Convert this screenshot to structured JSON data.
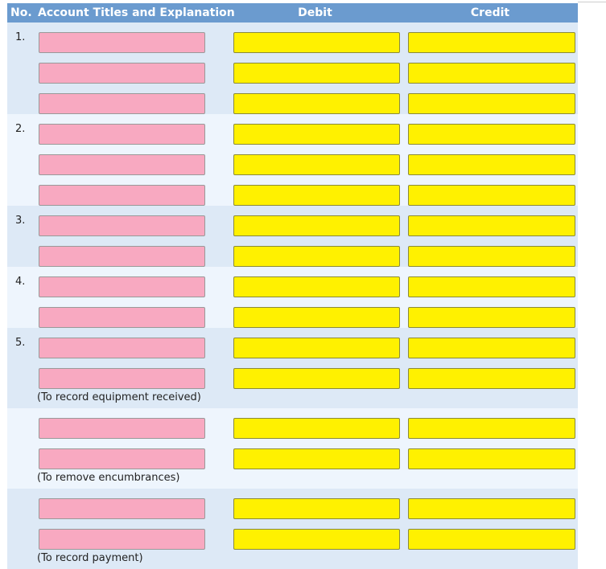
{
  "header": {
    "no": "No.",
    "account": "Account Titles and Explanation",
    "debit": "Debit",
    "credit": "Credit"
  },
  "entries": [
    {
      "number": "1."
    },
    {
      "number": "2."
    },
    {
      "number": "3."
    },
    {
      "number": "4."
    },
    {
      "number": "5.",
      "note": "(To record equipment received)"
    },
    {
      "note": "(To remove encumbrances)"
    },
    {
      "note": "(To record payment)"
    }
  ]
}
